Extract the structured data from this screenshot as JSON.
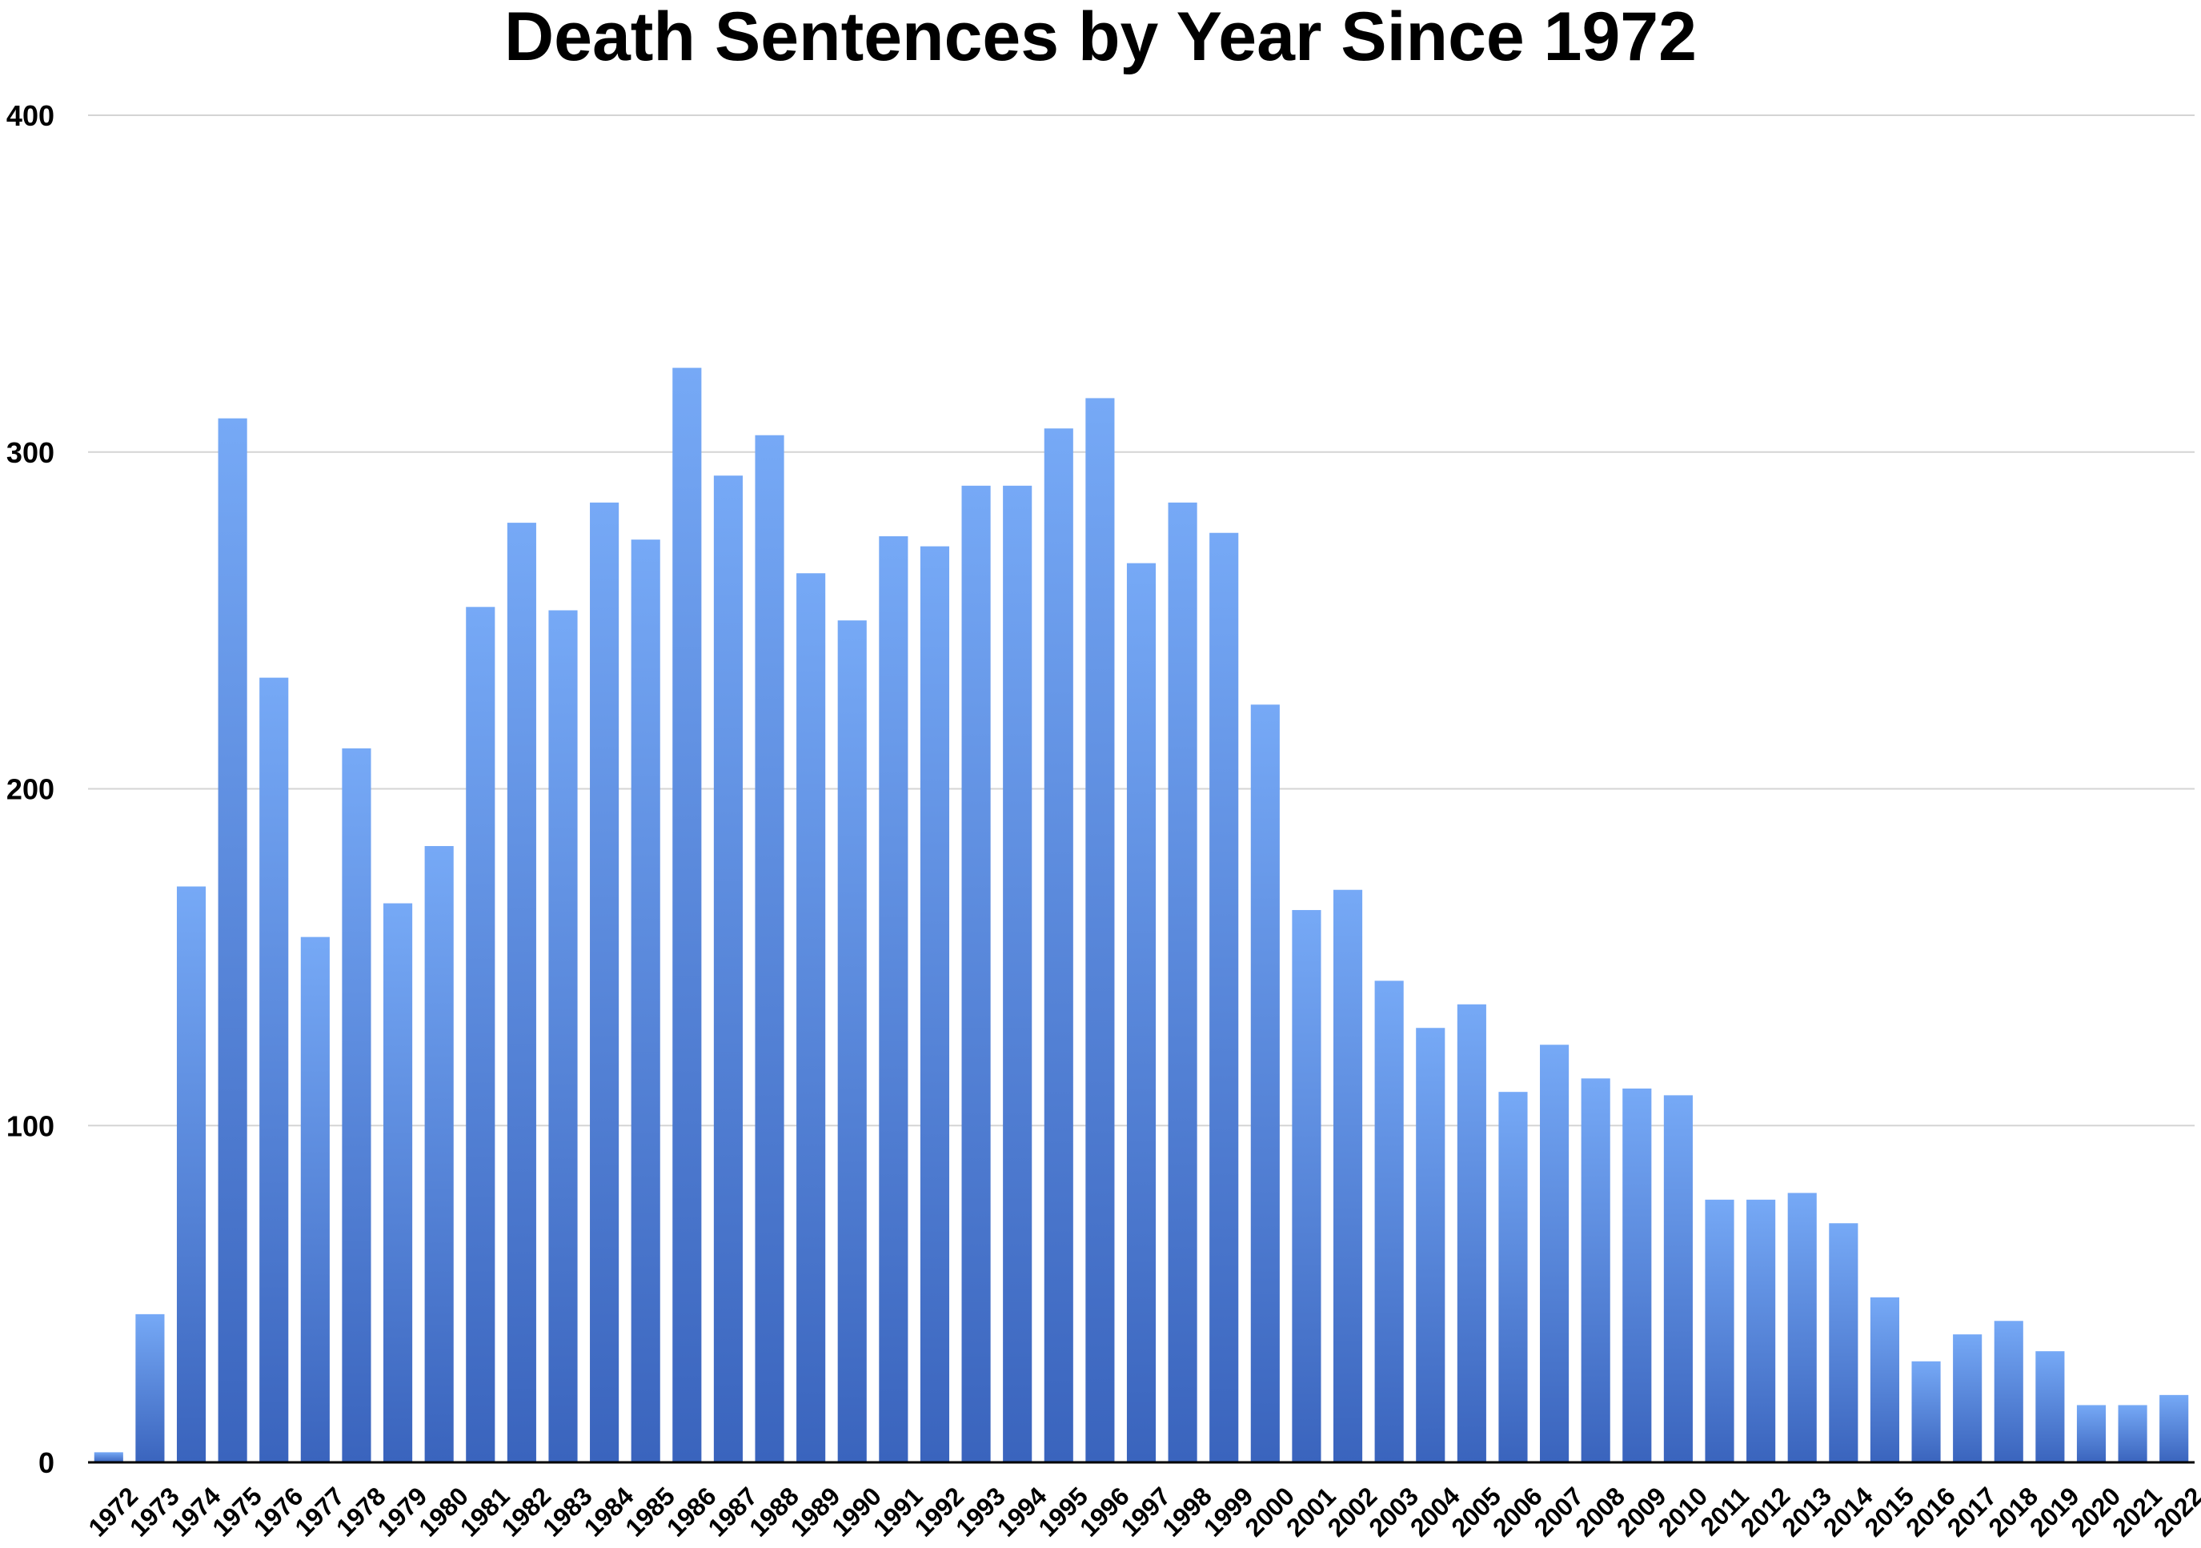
{
  "chart_data": {
    "type": "bar",
    "title": "Death Sentences by Year Since 1972",
    "xlabel": "",
    "ylabel": "",
    "ylim": [
      0,
      400
    ],
    "yticks": [
      0,
      100,
      200,
      300,
      400
    ],
    "grid": true,
    "bar_color_top": "#76a9f6",
    "bar_color_bottom": "#3a64bd",
    "categories": [
      "1972",
      "1973",
      "1974",
      "1975",
      "1976",
      "1977",
      "1978",
      "1979",
      "1980",
      "1981",
      "1982",
      "1983",
      "1984",
      "1985",
      "1986",
      "1987",
      "1988",
      "1989",
      "1990",
      "1991",
      "1992",
      "1993",
      "1994",
      "1995",
      "1996",
      "1997",
      "1998",
      "1999",
      "2000",
      "2001",
      "2002",
      "2003",
      "2004",
      "2005",
      "2006",
      "2007",
      "2008",
      "2009",
      "2010",
      "2011",
      "2012",
      "2013",
      "2014",
      "2015",
      "2016",
      "2017",
      "2018",
      "2019",
      "2020",
      "2021",
      "2022"
    ],
    "values": [
      3,
      44,
      171,
      310,
      233,
      156,
      212,
      166,
      183,
      254,
      279,
      253,
      285,
      274,
      325,
      293,
      305,
      264,
      250,
      275,
      272,
      290,
      290,
      307,
      316,
      267,
      285,
      276,
      225,
      164,
      170,
      143,
      129,
      136,
      110,
      124,
      114,
      111,
      109,
      78,
      78,
      80,
      71,
      49,
      30,
      38,
      42,
      33,
      17,
      17,
      20
    ]
  }
}
